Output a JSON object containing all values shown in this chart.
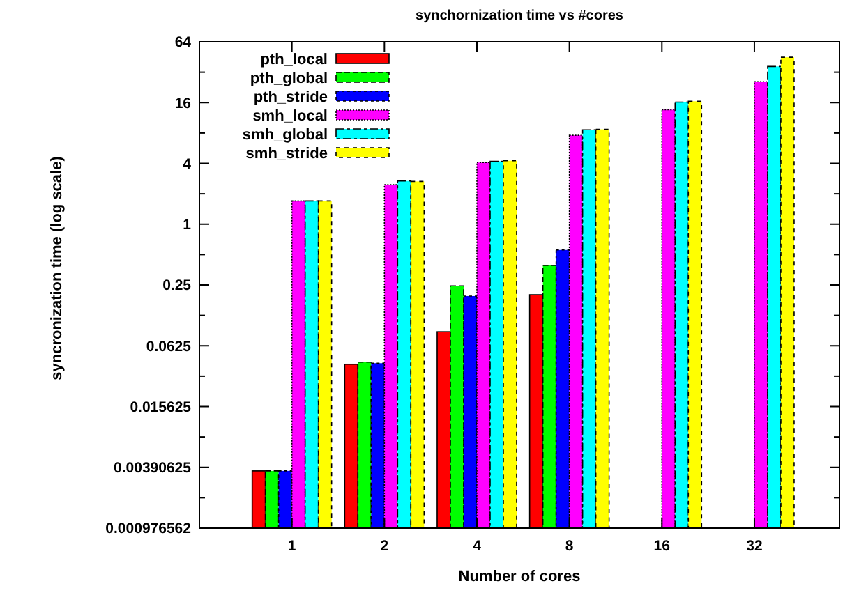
{
  "chart_data": {
    "type": "bar",
    "title": "synchornization time vs #cores",
    "xlabel": "Number of cores",
    "ylabel": "syncronization time (log scale)",
    "categories": [
      "1",
      "2",
      "4",
      "8",
      "16",
      "32"
    ],
    "series": [
      {
        "name": "pth_local",
        "color": "#ff0000",
        "values": [
          0.0036,
          0.041,
          0.086,
          0.2,
          null,
          null
        ]
      },
      {
        "name": "pth_global",
        "color": "#00ff00",
        "values": [
          0.0036,
          0.043,
          0.245,
          0.39,
          null,
          null
        ]
      },
      {
        "name": "pth_stride",
        "color": "#0000ff",
        "values": [
          0.0036,
          0.042,
          0.194,
          0.555,
          null,
          null
        ]
      },
      {
        "name": "smh_local",
        "color": "#ff00ff",
        "values": [
          1.7,
          2.46,
          4.08,
          7.6,
          13.6,
          25.8
        ]
      },
      {
        "name": "smh_global",
        "color": "#00ffff",
        "values": [
          1.7,
          2.68,
          4.2,
          8.6,
          16.2,
          36.5
        ]
      },
      {
        "name": "smh_stride",
        "color": "#ffff00",
        "values": [
          1.7,
          2.65,
          4.25,
          8.7,
          16.5,
          45
        ]
      }
    ],
    "log": true,
    "ylim": [
      0.0009765625,
      64
    ],
    "yticks": [
      {
        "value": 0.0009765625,
        "label": "0.000976562"
      },
      {
        "value": 0.001953125,
        "label": null
      },
      0.00390625,
      {
        "value": 0.0078125,
        "label": null
      },
      0.015625,
      {
        "value": 0.03125,
        "label": null
      },
      0.0625,
      {
        "value": 0.125,
        "label": null
      },
      0.25,
      {
        "value": 0.5,
        "label": null
      },
      1,
      {
        "value": 2,
        "label": null
      },
      4,
      {
        "value": 8,
        "label": null
      },
      16,
      {
        "value": 32,
        "label": null
      },
      64
    ],
    "legend": "top left",
    "grid": false
  }
}
